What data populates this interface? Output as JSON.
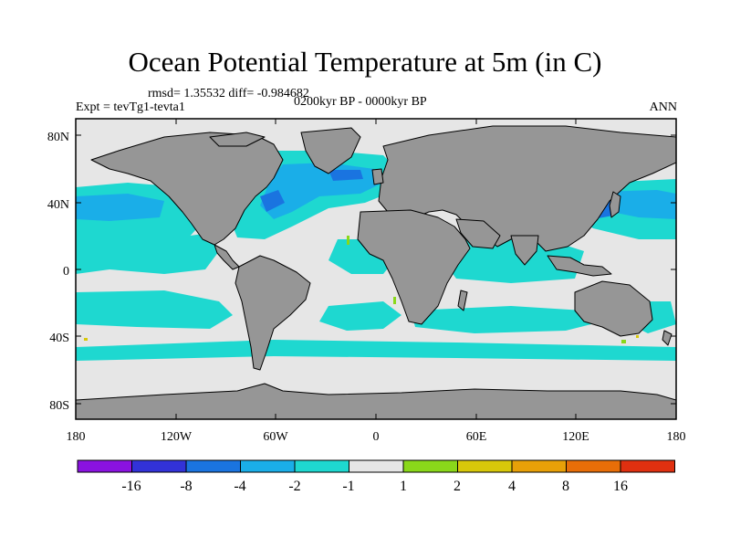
{
  "title": "Ocean Potential Temperature at 5m (in C)",
  "stats": "rmsd= 1.35532 diff= -0.984682",
  "experiment": "Expt = tevTg1-tevta1",
  "period": "0200kyr BP - 0000kyr BP",
  "season": "ANN",
  "x_ticks": [
    "180",
    "120W",
    "60W",
    "0",
    "60E",
    "120E",
    "180"
  ],
  "y_ticks": [
    "80N",
    "40N",
    "0",
    "40S",
    "80S"
  ],
  "colorbar": {
    "labels": [
      "-16",
      "-8",
      "-4",
      "-2",
      "-1",
      "1",
      "2",
      "4",
      "8",
      "16"
    ],
    "colors": [
      "#8a12e0",
      "#3232d8",
      "#1a74e0",
      "#1aaee8",
      "#1ed8d0",
      "#e6e6e6",
      "#8ad81a",
      "#d8c80a",
      "#e8a008",
      "#e86e08",
      "#e03010"
    ]
  },
  "colors": {
    "land": "#969696",
    "neutral_ocean": "#e6e6e6",
    "coast": "#000000"
  }
}
